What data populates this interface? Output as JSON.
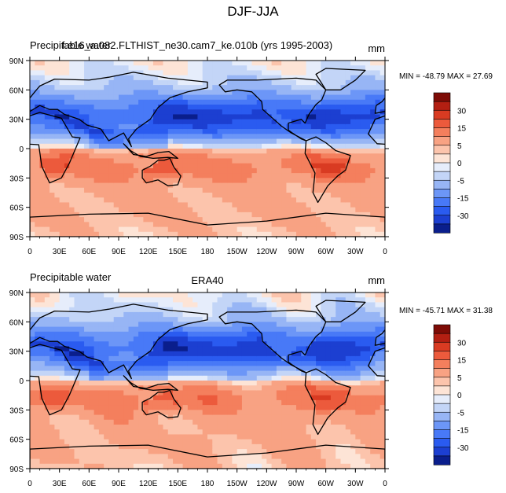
{
  "title": "DJF-JJA",
  "colors": {
    "levels": [
      "#0a1e8c",
      "#1c3fd1",
      "#2a5bf0",
      "#4879f7",
      "#6c96f7",
      "#97b5f5",
      "#c3d5f7",
      "#e6edfb",
      "#fde4d6",
      "#fcc4ac",
      "#f8a283",
      "#f47f5d",
      "#ec5a3c",
      "#d93b22",
      "#b31f12",
      "#7e0c06"
    ]
  },
  "colorbar_labels": [
    "30",
    "15",
    "5",
    "0",
    "-5",
    "-15",
    "-30"
  ],
  "chart_data": [
    {
      "type": "heatmap",
      "panel": "top",
      "left_label": "Precipitable water",
      "center_label": "f.e16_a.082.FLTHIST_ne30.cam7_ke.010b (yrs 1995-2003)",
      "units": "mm",
      "min_max": "MIN = -48.79 MAX =  27.69",
      "min": -48.79,
      "max": 27.69,
      "x_ticks": [
        "0",
        "30E",
        "60E",
        "90E",
        "120E",
        "150E",
        "180",
        "150W",
        "120W",
        "90W",
        "60W",
        "30W",
        "0"
      ],
      "y_ticks": [
        "90N",
        "60N",
        "30N",
        "0",
        "30S",
        "60S",
        "90S"
      ],
      "xlim": [
        0,
        360
      ],
      "ylim": [
        -90,
        90
      ],
      "colorbar_levels": [
        30,
        15,
        5,
        0,
        -5,
        -15,
        -30
      ]
    },
    {
      "type": "heatmap",
      "panel": "bottom",
      "left_label": "Precipitable water",
      "center_label": "ERA40",
      "units": "mm",
      "min_max": "MIN = -45.71 MAX =  31.38",
      "min": -45.71,
      "max": 31.38,
      "x_ticks": [
        "0",
        "30E",
        "60E",
        "90E",
        "120E",
        "150E",
        "180",
        "150W",
        "120W",
        "90W",
        "60W",
        "30W",
        "0"
      ],
      "y_ticks": [
        "90N",
        "60N",
        "30N",
        "0",
        "30S",
        "60S",
        "90S"
      ],
      "xlim": [
        0,
        360
      ],
      "ylim": [
        -90,
        90
      ],
      "colorbar_levels": [
        30,
        15,
        5,
        0,
        -5,
        -15,
        -30
      ]
    }
  ]
}
